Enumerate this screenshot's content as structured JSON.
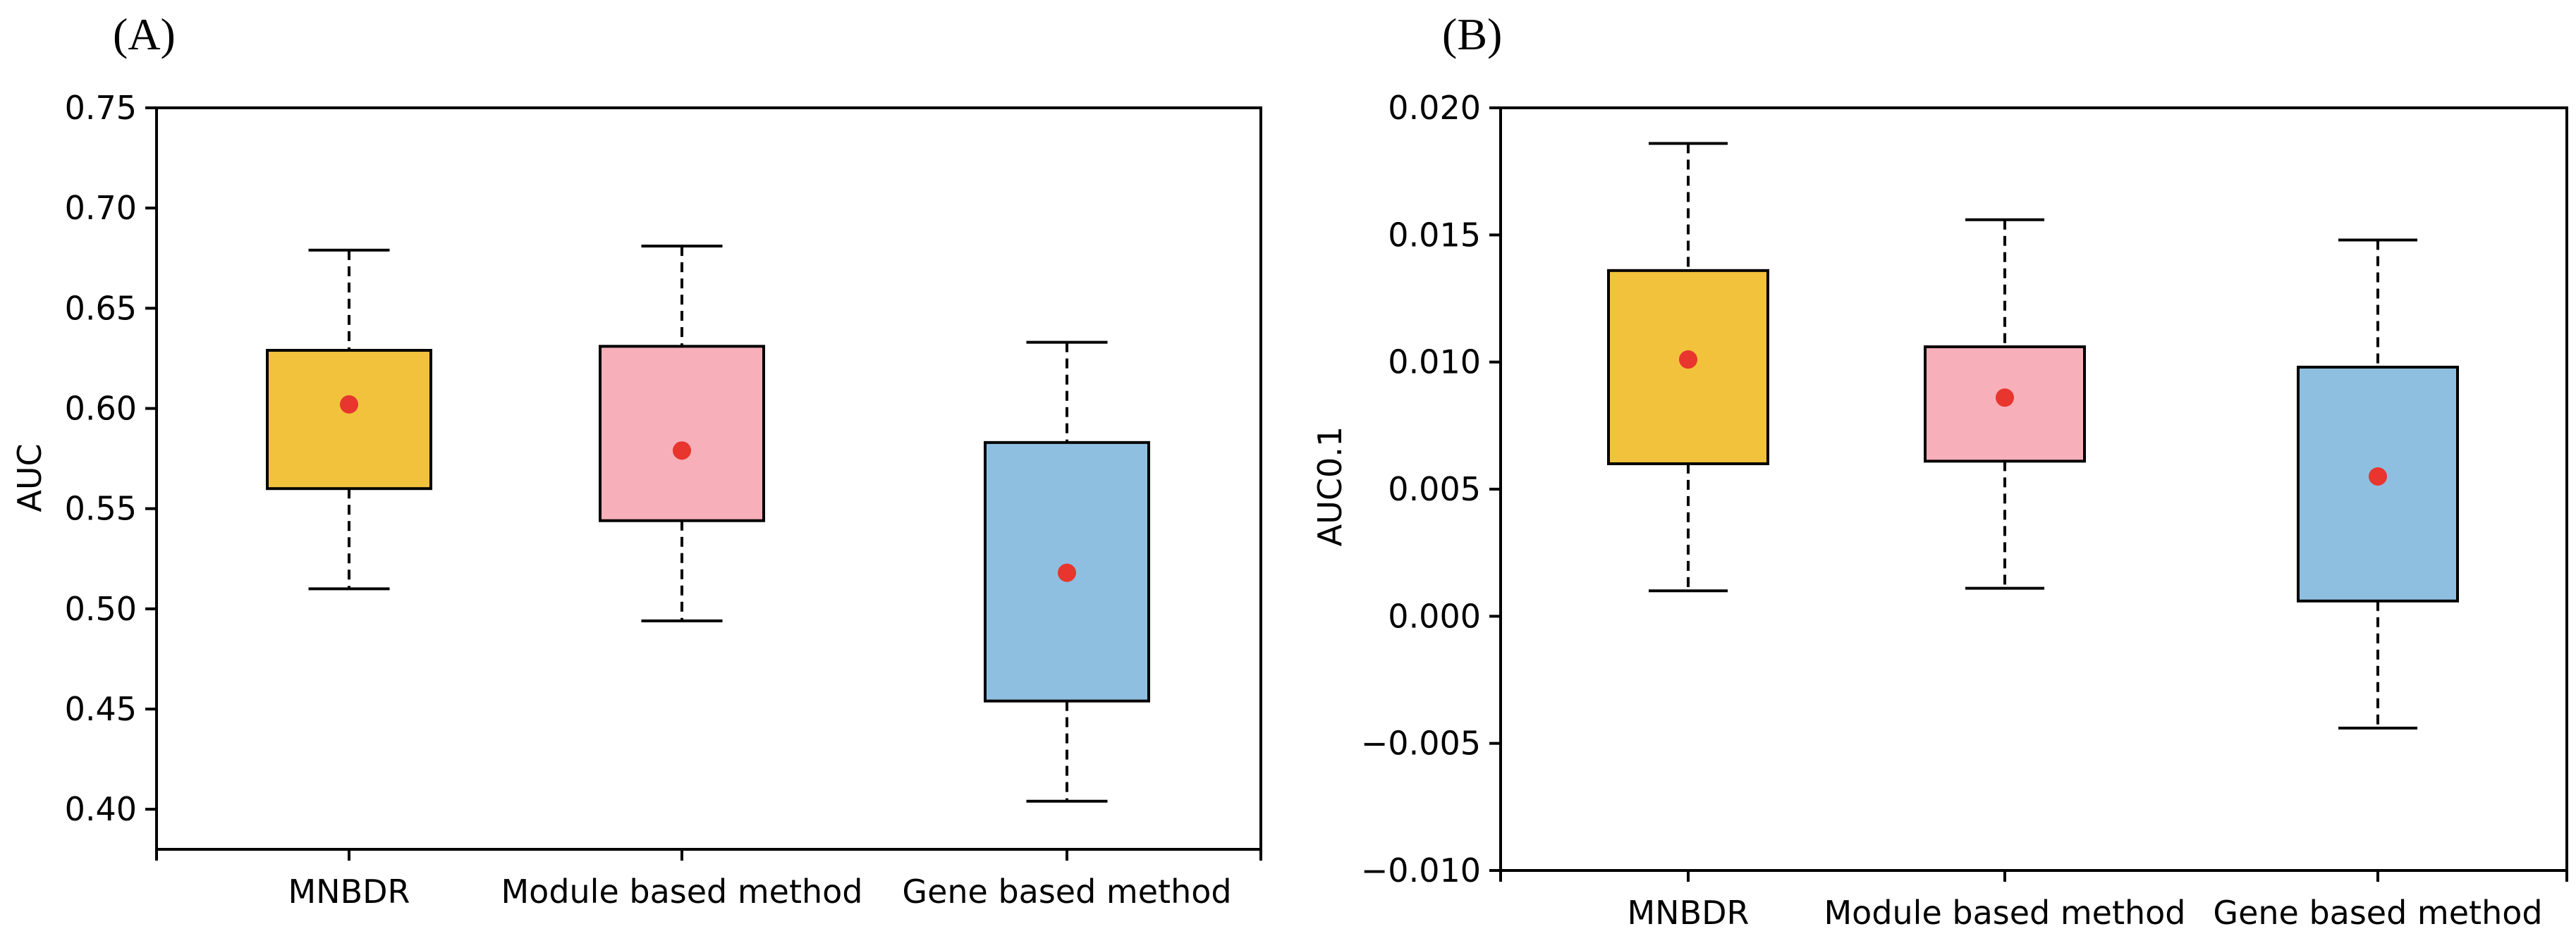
{
  "chart_data": [
    {
      "type": "box",
      "panel_label": "(A)",
      "title": "",
      "xlabel": "",
      "ylabel": "AUC",
      "ylim": [
        0.38,
        0.75
      ],
      "yticks": [
        0.4,
        0.45,
        0.5,
        0.55,
        0.6,
        0.65,
        0.7,
        0.75
      ],
      "ytick_labels": [
        "0.40",
        "0.45",
        "0.50",
        "0.55",
        "0.60",
        "0.65",
        "0.70",
        "0.75"
      ],
      "categories": [
        "MNBDR",
        "Module based method",
        "Gene based method"
      ],
      "boxes": [
        {
          "name": "MNBDR",
          "whisker_low": 0.51,
          "q1": 0.56,
          "q3": 0.629,
          "whisker_high": 0.679,
          "mean": 0.602,
          "color": "#f2c23c"
        },
        {
          "name": "Module based method",
          "whisker_low": 0.494,
          "q1": 0.544,
          "q3": 0.631,
          "whisker_high": 0.681,
          "mean": 0.579,
          "color": "#f7afb9"
        },
        {
          "name": "Gene based method",
          "whisker_low": 0.404,
          "q1": 0.454,
          "q3": 0.583,
          "whisker_high": 0.633,
          "mean": 0.518,
          "color": "#8fbfe0"
        }
      ],
      "mean_color": "#e8352e"
    },
    {
      "type": "box",
      "panel_label": "(B)",
      "title": "",
      "xlabel": "",
      "ylabel": "AUC0.1",
      "ylim": [
        -0.01,
        0.02
      ],
      "yticks": [
        -0.01,
        -0.005,
        0.0,
        0.005,
        0.01,
        0.015,
        0.02
      ],
      "ytick_labels": [
        "−0.010",
        "−0.005",
        "0.000",
        "0.005",
        "0.010",
        "0.015",
        "0.020"
      ],
      "categories": [
        "MNBDR",
        "Module based method",
        "Gene based method"
      ],
      "boxes": [
        {
          "name": "MNBDR",
          "whisker_low": 0.001,
          "q1": 0.006,
          "q3": 0.0136,
          "whisker_high": 0.0186,
          "mean": 0.0101,
          "color": "#f2c23c"
        },
        {
          "name": "Module based method",
          "whisker_low": 0.0011,
          "q1": 0.0061,
          "q3": 0.0106,
          "whisker_high": 0.0156,
          "mean": 0.0086,
          "color": "#f7afb9"
        },
        {
          "name": "Gene based method",
          "whisker_low": -0.0044,
          "q1": 0.0006,
          "q3": 0.0098,
          "whisker_high": 0.0148,
          "mean": 0.0055,
          "color": "#8fbfe0"
        }
      ],
      "mean_color": "#e8352e"
    }
  ]
}
